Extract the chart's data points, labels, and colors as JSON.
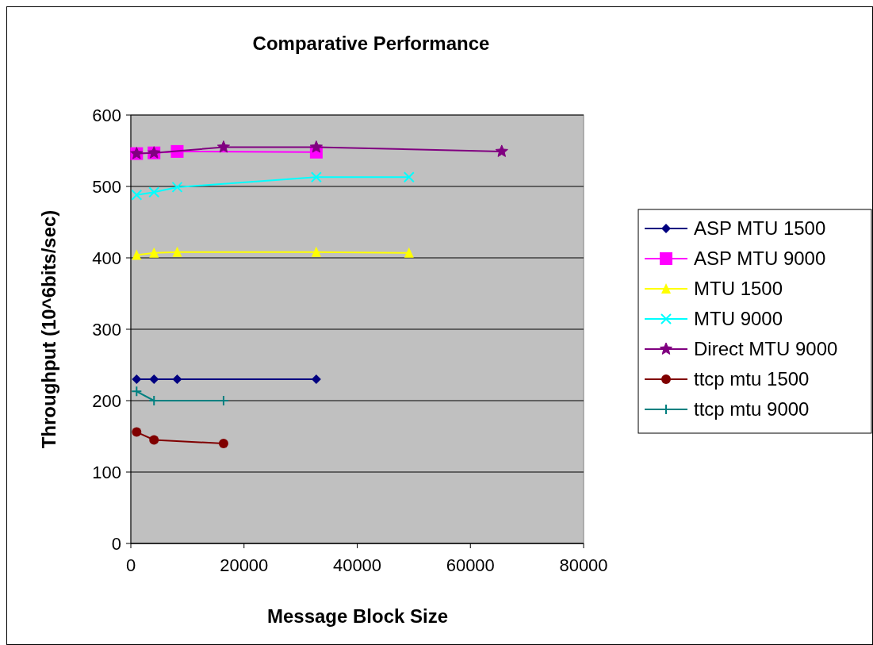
{
  "chart_data": {
    "type": "line",
    "title": "Comparative Performance",
    "xlabel": "Message Block Size",
    "ylabel": "Throughput (10^6bits/sec)",
    "xlim": [
      0,
      80000
    ],
    "xticks": [
      0,
      20000,
      40000,
      60000,
      80000
    ],
    "ylim": [
      0,
      600
    ],
    "yticks": [
      0,
      100,
      200,
      300,
      400,
      500,
      600
    ],
    "grid": "y",
    "legend": "right",
    "series": [
      {
        "name": "ASP MTU 1500",
        "color": "#000080",
        "marker": "diamond",
        "x": [
          1024,
          4096,
          8192,
          32768
        ],
        "values": [
          230,
          230,
          230,
          230
        ]
      },
      {
        "name": "ASP MTU 9000",
        "color": "#ff00ff",
        "marker": "square",
        "x": [
          1024,
          4096,
          8192,
          32768
        ],
        "values": [
          546,
          547,
          549,
          548
        ]
      },
      {
        "name": "MTU 1500",
        "color": "#ffff00",
        "marker": "triangle",
        "x": [
          1024,
          4096,
          8192,
          32768,
          49152
        ],
        "values": [
          404,
          407,
          408,
          408,
          407
        ]
      },
      {
        "name": "MTU 9000",
        "color": "#00ffff",
        "marker": "cross",
        "x": [
          1024,
          4096,
          8192,
          32768,
          49152
        ],
        "values": [
          488,
          492,
          499,
          513,
          513
        ]
      },
      {
        "name": "Direct MTU 9000",
        "color": "#800080",
        "marker": "star",
        "x": [
          1024,
          4096,
          16384,
          32768,
          65536
        ],
        "values": [
          546,
          547,
          555,
          555,
          549
        ]
      },
      {
        "name": "ttcp mtu 1500",
        "color": "#800000",
        "marker": "circle",
        "x": [
          1024,
          4096,
          16384
        ],
        "values": [
          156,
          145,
          140
        ]
      },
      {
        "name": "ttcp mtu 9000",
        "color": "#008080",
        "marker": "plus",
        "x": [
          1024,
          4096,
          16384
        ],
        "values": [
          213,
          200,
          200
        ]
      }
    ]
  }
}
